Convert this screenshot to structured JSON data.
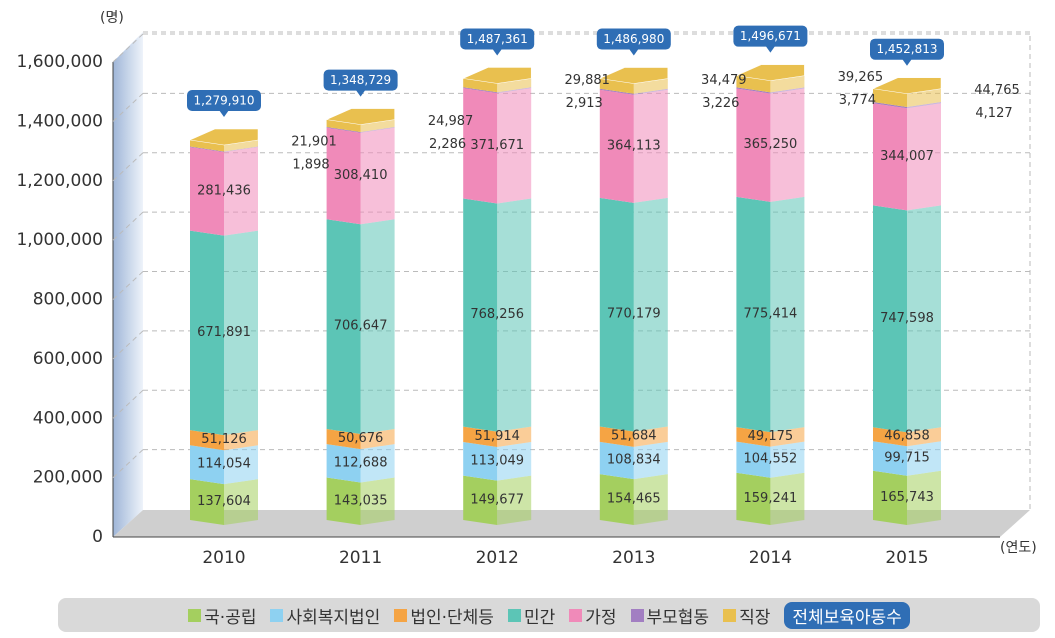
{
  "chart_data": {
    "type": "stacked_bar_3d",
    "y_unit_label": "(명)",
    "x_unit_label": "(연도)",
    "categories": [
      "2010",
      "2011",
      "2012",
      "2013",
      "2014",
      "2015"
    ],
    "ylim": [
      0,
      1600000
    ],
    "yticks": [
      0,
      {
        "value": 200000,
        "label": "200,000"
      },
      {
        "value": 400000,
        "label": "400,000"
      },
      {
        "value": 600000,
        "label": "600,000"
      },
      {
        "value": 800000,
        "label": "800,000"
      },
      {
        "value": 1000000,
        "label": "1,000,000"
      },
      {
        "value": 1200000,
        "label": "1,200,000"
      },
      {
        "value": 1400000,
        "label": "1,400,000"
      },
      {
        "value": 1600000,
        "label": "1,600,000"
      }
    ],
    "grid": true,
    "series": [
      {
        "name": "국·공립",
        "color": "#a4cf5f",
        "values": [
          137604,
          143035,
          149677,
          154465,
          159241,
          165743
        ],
        "value_labels": [
          "137,604",
          "143,035",
          "149,677",
          "154,465",
          "159,241",
          "165,743"
        ]
      },
      {
        "name": "사회복지법인",
        "color": "#8ed1f1",
        "values": [
          114054,
          112688,
          113049,
          108834,
          104552,
          99715
        ],
        "value_labels": [
          "114,054",
          "112,688",
          "113,049",
          "108,834",
          "104,552",
          "99,715"
        ]
      },
      {
        "name": "법인·단체등",
        "color": "#f5a444",
        "values": [
          51126,
          50676,
          51914,
          51684,
          49175,
          46858
        ],
        "value_labels": [
          "51,126",
          "50,676",
          "51,914",
          "51,684",
          "49,175",
          "46,858"
        ]
      },
      {
        "name": "민간",
        "color": "#5cc5b6",
        "values": [
          671891,
          706647,
          768256,
          770179,
          775414,
          747598
        ],
        "value_labels": [
          "671,891",
          "706,647",
          "768,256",
          "770,179",
          "775,414",
          "747,598"
        ]
      },
      {
        "name": "가정",
        "color": "#f08ab9",
        "values": [
          281436,
          308410,
          371671,
          364113,
          365250,
          344007
        ],
        "value_labels": [
          "281,436",
          "308,410",
          "371,671",
          "364,113",
          "365,250",
          "344,007"
        ]
      },
      {
        "name": "부모협동",
        "color": "#a27ec2",
        "values": [
          1898,
          2286,
          2913,
          3226,
          3774,
          4127
        ],
        "value_labels": [
          "1,898",
          "2,286",
          "2,913",
          "3,226",
          "3,774",
          "4,127"
        ]
      },
      {
        "name": "직장",
        "color": "#e9c04f",
        "values": [
          21901,
          24987,
          29881,
          34479,
          39265,
          44765
        ],
        "value_labels": [
          "21,901",
          "24,987",
          "29,881",
          "34,479",
          "39,265",
          "44,765"
        ]
      }
    ],
    "totals": {
      "name": "전체보육아동수",
      "color": "#2f6eb5",
      "values": [
        1279910,
        1348729,
        1487361,
        1486980,
        1496671,
        1452813
      ],
      "value_labels": [
        "1,279,910",
        "1,348,729",
        "1,487,361",
        "1,486,980",
        "1,496,671",
        "1,452,813"
      ]
    }
  }
}
